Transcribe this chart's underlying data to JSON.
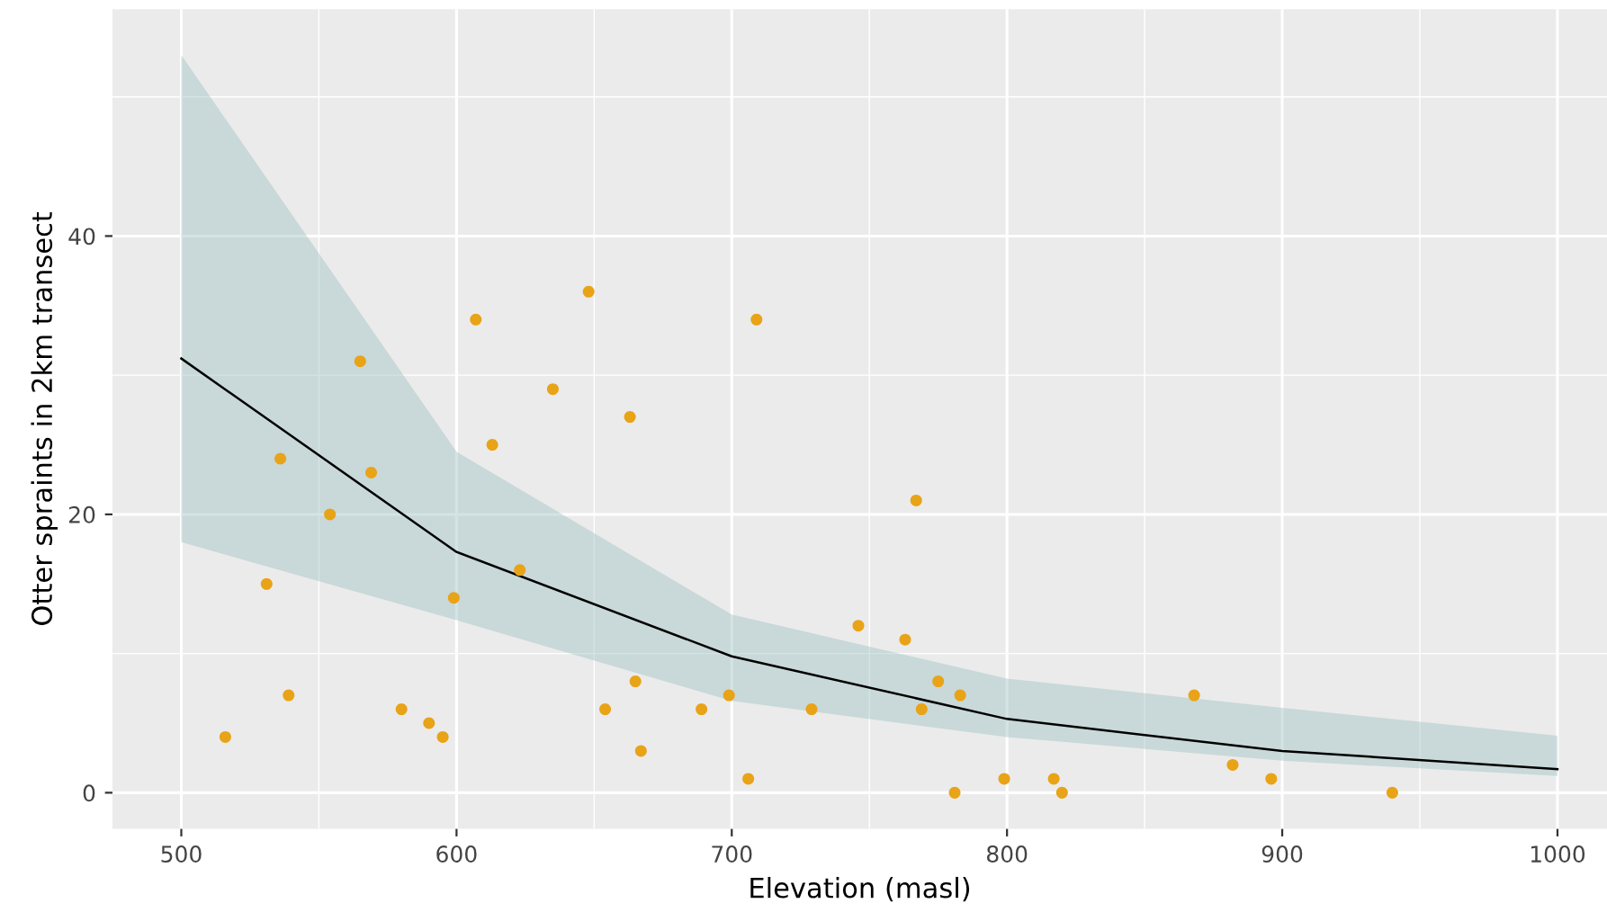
{
  "chart_data": {
    "type": "scatter",
    "xlabel": "Elevation (masl)",
    "ylabel": "Otter spraints in 2km transect",
    "xlim": [
      475,
      1018
    ],
    "ylim": [
      -2.6,
      56.3
    ],
    "xticks": [
      500,
      600,
      700,
      800,
      900,
      1000
    ],
    "yticks": [
      0,
      20,
      40
    ],
    "grid": true,
    "series": [
      {
        "marker": "circle",
        "color": "#e8a317",
        "x": [
          516,
          531,
          536,
          539,
          554,
          565,
          569,
          580,
          590,
          595,
          599,
          607,
          613,
          623,
          635,
          648,
          654,
          663,
          665,
          667,
          689,
          699,
          706,
          709,
          729,
          746,
          763,
          767,
          769,
          775,
          781,
          783,
          799,
          817,
          820,
          868,
          882,
          896,
          940
        ],
        "values": [
          4,
          15,
          24,
          7,
          20,
          31,
          23,
          6,
          5,
          4,
          14,
          34,
          25,
          16,
          29,
          36,
          6,
          27,
          8,
          3,
          6,
          7,
          1,
          34,
          6,
          12,
          11,
          21,
          6,
          8,
          0,
          7,
          1,
          1,
          0,
          7,
          2,
          1,
          0
        ]
      },
      {
        "type": "line",
        "color": "#000000",
        "line_style": "solid",
        "x": [
          500,
          600,
          700,
          800,
          900,
          1000
        ],
        "values": [
          31.2,
          17.3,
          9.8,
          5.3,
          3.0,
          1.7
        ],
        "lower": [
          18.0,
          12.4,
          6.6,
          4.0,
          2.3,
          1.2
        ],
        "upper": [
          53.0,
          24.5,
          12.8,
          8.2,
          6.1,
          4.1
        ]
      }
    ]
  }
}
